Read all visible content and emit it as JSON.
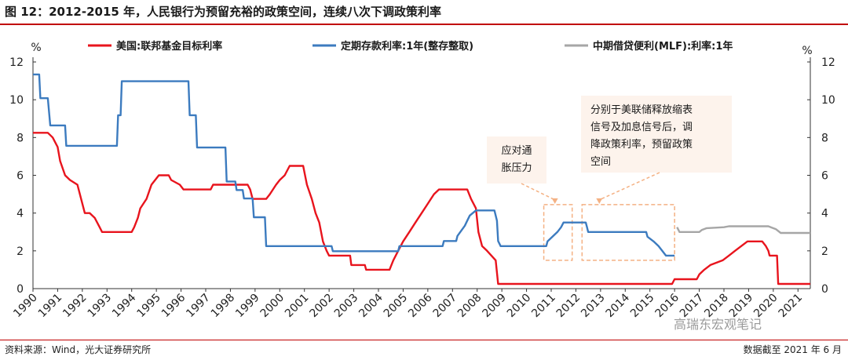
{
  "header": {
    "title": "图 12：2012-2015 年，人民银行为预留充裕的政策空间，连续八次下调政策利率"
  },
  "footer": {
    "source": "资料来源：Wind，光大证券研究所",
    "data_note": "数据截至 2021 年 6 月"
  },
  "watermark": "高瑞东宏观笔记",
  "colors": {
    "fed": "#e8141d",
    "deposit": "#3c7bbf",
    "mlf": "#a6a6a6",
    "annotation": "#f4b183",
    "note_bg": "#fdf3ec",
    "rule": "#c00000"
  },
  "chart_data": {
    "type": "line",
    "title": "图 12：2012-2015 年，人民银行为预留充裕的政策空间，连续八次下调政策利率",
    "y_left": {
      "unit": "%",
      "min": 0,
      "max": 12,
      "ticks": [
        0,
        2,
        4,
        6,
        8,
        10,
        12
      ]
    },
    "y_right": {
      "unit": "%",
      "min": 0,
      "max": 12,
      "ticks": [
        0,
        2,
        4,
        6,
        8,
        10,
        12
      ]
    },
    "x_range": [
      1990,
      2021.5
    ],
    "x_ticks": [
      "1990",
      "1991",
      "1992",
      "1993",
      "1994",
      "1995",
      "1996",
      "1997",
      "1998",
      "1999",
      "2000",
      "2001",
      "2002",
      "2003",
      "2004",
      "2005",
      "2006",
      "2007",
      "2008",
      "2009",
      "2010",
      "2011",
      "2012",
      "2013",
      "2014",
      "2015",
      "2016",
      "2017",
      "2018",
      "2019",
      "2020",
      "2021"
    ],
    "legend_position": "top",
    "series": [
      {
        "name": "美国:联邦基金目标利率",
        "color": "#e8141d",
        "points": [
          [
            1990,
            8.25
          ],
          [
            1990.6,
            8.25
          ],
          [
            1990.8,
            8.0
          ],
          [
            1991.0,
            7.5
          ],
          [
            1991.1,
            6.75
          ],
          [
            1991.3,
            6.0
          ],
          [
            1991.5,
            5.75
          ],
          [
            1991.8,
            5.5
          ],
          [
            1991.95,
            4.75
          ],
          [
            1992.1,
            4.0
          ],
          [
            1992.3,
            4.0
          ],
          [
            1992.5,
            3.75
          ],
          [
            1992.7,
            3.25
          ],
          [
            1992.8,
            3.0
          ],
          [
            1994.0,
            3.0
          ],
          [
            1994.1,
            3.25
          ],
          [
            1994.25,
            3.75
          ],
          [
            1994.35,
            4.25
          ],
          [
            1994.6,
            4.75
          ],
          [
            1994.8,
            5.5
          ],
          [
            1995.1,
            6.0
          ],
          [
            1995.5,
            6.0
          ],
          [
            1995.6,
            5.75
          ],
          [
            1995.95,
            5.5
          ],
          [
            1996.1,
            5.25
          ],
          [
            1997.2,
            5.25
          ],
          [
            1997.3,
            5.5
          ],
          [
            1998.7,
            5.5
          ],
          [
            1998.8,
            5.25
          ],
          [
            1998.9,
            4.75
          ],
          [
            1999.45,
            4.75
          ],
          [
            1999.6,
            5.0
          ],
          [
            1999.85,
            5.5
          ],
          [
            2000.0,
            5.75
          ],
          [
            2000.2,
            6.0
          ],
          [
            2000.4,
            6.5
          ],
          [
            2000.95,
            6.5
          ],
          [
            2001.1,
            5.5
          ],
          [
            2001.3,
            4.75
          ],
          [
            2001.45,
            4.0
          ],
          [
            2001.6,
            3.5
          ],
          [
            2001.75,
            2.5
          ],
          [
            2001.9,
            2.0
          ],
          [
            2002.0,
            1.75
          ],
          [
            2002.85,
            1.75
          ],
          [
            2002.9,
            1.25
          ],
          [
            2003.45,
            1.25
          ],
          [
            2003.5,
            1.0
          ],
          [
            2004.45,
            1.0
          ],
          [
            2004.6,
            1.5
          ],
          [
            2004.8,
            2.0
          ],
          [
            2005.0,
            2.5
          ],
          [
            2005.25,
            3.0
          ],
          [
            2005.5,
            3.5
          ],
          [
            2005.75,
            4.0
          ],
          [
            2006.0,
            4.5
          ],
          [
            2006.25,
            5.0
          ],
          [
            2006.45,
            5.25
          ],
          [
            2007.6,
            5.25
          ],
          [
            2007.75,
            4.75
          ],
          [
            2007.95,
            4.25
          ],
          [
            2008.05,
            3.0
          ],
          [
            2008.2,
            2.25
          ],
          [
            2008.4,
            2.0
          ],
          [
            2008.75,
            1.5
          ],
          [
            2008.85,
            0.25
          ],
          [
            2015.9,
            0.25
          ],
          [
            2016.0,
            0.5
          ],
          [
            2016.9,
            0.5
          ],
          [
            2017.0,
            0.75
          ],
          [
            2017.2,
            1.0
          ],
          [
            2017.45,
            1.25
          ],
          [
            2017.95,
            1.5
          ],
          [
            2018.2,
            1.75
          ],
          [
            2018.45,
            2.0
          ],
          [
            2018.7,
            2.25
          ],
          [
            2018.95,
            2.5
          ],
          [
            2019.55,
            2.5
          ],
          [
            2019.7,
            2.25
          ],
          [
            2019.8,
            2.0
          ],
          [
            2019.85,
            1.75
          ],
          [
            2020.15,
            1.75
          ],
          [
            2020.2,
            0.25
          ],
          [
            2021.5,
            0.25
          ]
        ]
      },
      {
        "name": "定期存款利率:1年(整存整取)",
        "color": "#3c7bbf",
        "points": [
          [
            1990,
            11.34
          ],
          [
            1990.25,
            11.34
          ],
          [
            1990.3,
            10.08
          ],
          [
            1990.6,
            10.08
          ],
          [
            1990.7,
            8.64
          ],
          [
            1991.3,
            8.64
          ],
          [
            1991.35,
            7.56
          ],
          [
            1993.4,
            7.56
          ],
          [
            1993.45,
            9.18
          ],
          [
            1993.55,
            9.18
          ],
          [
            1993.6,
            10.98
          ],
          [
            1996.3,
            10.98
          ],
          [
            1996.35,
            9.18
          ],
          [
            1996.6,
            9.18
          ],
          [
            1996.65,
            7.47
          ],
          [
            1997.8,
            7.47
          ],
          [
            1997.85,
            5.67
          ],
          [
            1998.2,
            5.67
          ],
          [
            1998.25,
            5.22
          ],
          [
            1998.5,
            5.22
          ],
          [
            1998.55,
            4.77
          ],
          [
            1998.9,
            4.77
          ],
          [
            1998.95,
            3.78
          ],
          [
            1999.4,
            3.78
          ],
          [
            1999.45,
            2.25
          ],
          [
            2002.1,
            2.25
          ],
          [
            2002.15,
            1.98
          ],
          [
            2004.8,
            1.98
          ],
          [
            2004.85,
            2.25
          ],
          [
            2006.6,
            2.25
          ],
          [
            2006.65,
            2.52
          ],
          [
            2007.15,
            2.52
          ],
          [
            2007.2,
            2.79
          ],
          [
            2007.35,
            3.06
          ],
          [
            2007.5,
            3.33
          ],
          [
            2007.6,
            3.6
          ],
          [
            2007.7,
            3.87
          ],
          [
            2007.95,
            4.14
          ],
          [
            2008.7,
            4.14
          ],
          [
            2008.75,
            3.87
          ],
          [
            2008.8,
            3.6
          ],
          [
            2008.85,
            2.52
          ],
          [
            2008.95,
            2.25
          ],
          [
            2010.8,
            2.25
          ],
          [
            2010.85,
            2.5
          ],
          [
            2011.05,
            2.75
          ],
          [
            2011.25,
            3.0
          ],
          [
            2011.4,
            3.25
          ],
          [
            2011.5,
            3.5
          ],
          [
            2012.4,
            3.5
          ],
          [
            2012.45,
            3.25
          ],
          [
            2012.5,
            3.0
          ],
          [
            2014.85,
            3.0
          ],
          [
            2014.9,
            2.75
          ],
          [
            2015.15,
            2.5
          ],
          [
            2015.35,
            2.25
          ],
          [
            2015.5,
            2.0
          ],
          [
            2015.65,
            1.75
          ],
          [
            2016.0,
            1.75
          ]
        ]
      },
      {
        "name": "中期借贷便利(MLF):利率:1年",
        "color": "#a6a6a6",
        "points": [
          [
            2016.1,
            3.25
          ],
          [
            2016.2,
            3.0
          ],
          [
            2017.0,
            3.0
          ],
          [
            2017.1,
            3.1
          ],
          [
            2017.3,
            3.2
          ],
          [
            2018.0,
            3.25
          ],
          [
            2018.2,
            3.3
          ],
          [
            2019.8,
            3.3
          ],
          [
            2019.9,
            3.25
          ],
          [
            2020.1,
            3.15
          ],
          [
            2020.3,
            2.95
          ],
          [
            2021.5,
            2.95
          ]
        ]
      }
    ],
    "annotations": [
      {
        "text_lines": [
          "应对通",
          "胀压力"
        ]
      },
      {
        "text_lines": [
          "分别于美联储释放缩表",
          "信号及加息信号后，调",
          "降政策利率，预留政策",
          "空间"
        ]
      }
    ],
    "highlight_periods": [
      {
        "from": 2010.7,
        "to": 2011.85,
        "y_from": 1.5,
        "y_to": 4.45
      },
      {
        "from": 2012.25,
        "to": 2016.0,
        "y_from": 1.5,
        "y_to": 4.45
      }
    ]
  }
}
